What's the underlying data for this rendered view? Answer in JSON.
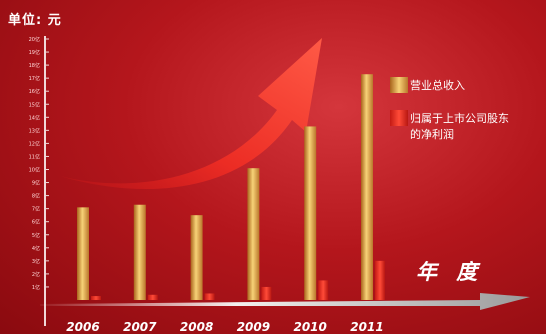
{
  "header": {
    "unit_label": "单位: 元"
  },
  "axis_title": "年 度",
  "chart_data": {
    "type": "bar",
    "categories": [
      "2006",
      "2007",
      "2008",
      "2009",
      "2010",
      "2011"
    ],
    "series": [
      {
        "name": "营业总收入",
        "values": [
          7.1,
          7.3,
          6.5,
          10.1,
          13.3,
          17.3
        ],
        "color": "#e8b24a"
      },
      {
        "name": "归属于上市公司股东的净利润",
        "values": [
          0.3,
          0.4,
          0.5,
          1.0,
          1.5,
          3.0
        ],
        "color": "#e8302a"
      }
    ],
    "ylim": [
      0,
      20
    ],
    "yticks": [
      "1亿",
      "2亿",
      "3亿",
      "4亿",
      "5亿",
      "6亿",
      "7亿",
      "8亿",
      "9亿",
      "10亿",
      "11亿",
      "12亿",
      "13亿",
      "14亿",
      "15亿",
      "16亿",
      "17亿",
      "18亿",
      "19亿",
      "20亿"
    ],
    "legend": [
      "营业总收入",
      "归属于上市公司股东的净利润"
    ],
    "legend_lines": [
      [
        "营业总收入"
      ],
      [
        "归属于上市公司股东",
        "的净利润"
      ]
    ],
    "legend_position": "right",
    "grid": false
  }
}
